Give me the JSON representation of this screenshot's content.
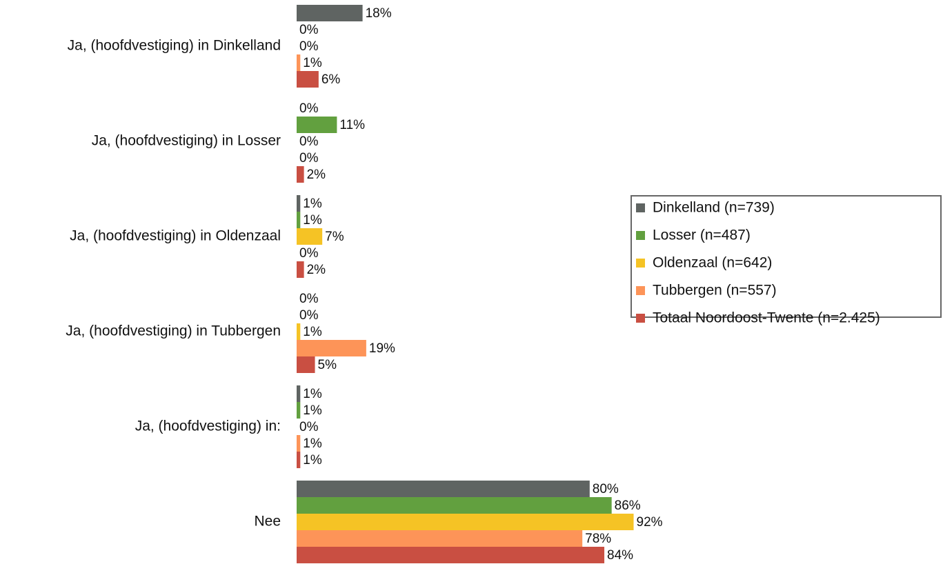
{
  "chart_data": {
    "type": "hbar",
    "categories": [
      "Ja, (hoofdvestiging) in Dinkelland",
      "Ja, (hoofdvestiging) in Losser",
      "Ja, (hoofdvestiging) in Oldenzaal",
      "Ja, (hoofdvestiging) in Tubbergen",
      "Ja, (hoofdvestiging) in:",
      "Nee"
    ],
    "xlim": [
      0,
      100
    ],
    "legend": "right",
    "series": [
      {
        "name": "Dinkelland (n=739)",
        "color": "#5f6462",
        "values": [
          18,
          0,
          1,
          0,
          1,
          80
        ],
        "value_labels": [
          "18%",
          "0%",
          "1%",
          "0%",
          "1%",
          "80%"
        ]
      },
      {
        "name": "Losser (n=487)",
        "color": "#62a03f",
        "values": [
          0,
          11,
          1,
          0,
          1,
          86
        ],
        "value_labels": [
          "0%",
          "11%",
          "1%",
          "0%",
          "1%",
          "86%"
        ]
      },
      {
        "name": "Oldenzaal (n=642)",
        "color": "#f5c325",
        "values": [
          0,
          0,
          7,
          1,
          0,
          92
        ],
        "value_labels": [
          "0%",
          "0%",
          "7%",
          "1%",
          "0%",
          "92%"
        ]
      },
      {
        "name": "Tubbergen (n=557)",
        "color": "#fd9458",
        "values": [
          1,
          0,
          0,
          19,
          1,
          78
        ],
        "value_labels": [
          "1%",
          "0%",
          "0%",
          "19%",
          "1%",
          "78%"
        ]
      },
      {
        "name": "Totaal Noordoost-Twente (n=2.425)",
        "color": "#c94f42",
        "values": [
          6,
          2,
          2,
          5,
          1,
          84
        ],
        "value_labels": [
          "6%",
          "2%",
          "2%",
          "5%",
          "1%",
          "84%"
        ]
      }
    ]
  }
}
